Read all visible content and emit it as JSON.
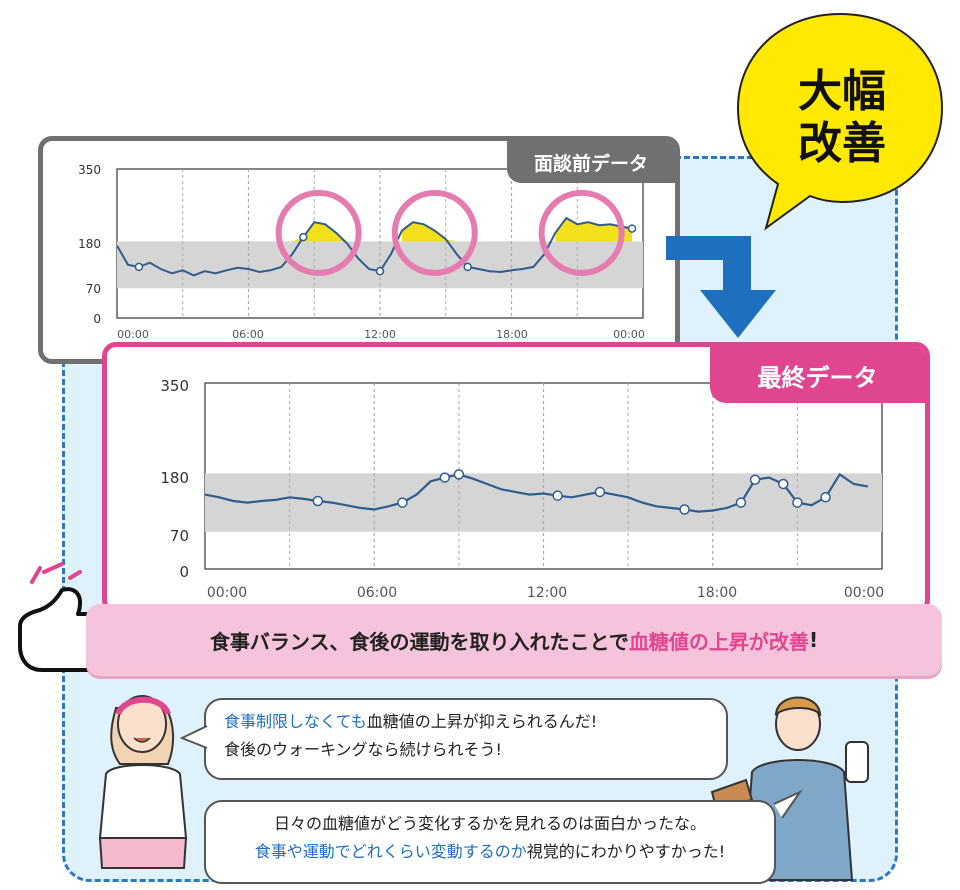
{
  "badge": {
    "line1": "大幅",
    "line2": "改善"
  },
  "before_chart": {
    "tab_label": "面談前データ",
    "y_ticks": [
      "350",
      "180",
      "70",
      "0"
    ],
    "x_ticks": [
      "00:00",
      "06:00",
      "12:00",
      "18:00",
      "00:00"
    ]
  },
  "after_chart": {
    "tab_label": "最終データ",
    "y_ticks": [
      "350",
      "180",
      "70",
      "0"
    ],
    "x_ticks": [
      "00:00",
      "06:00",
      "12:00",
      "18:00",
      "00:00"
    ]
  },
  "headline": {
    "text_plain": "食事バランス、食後の運動を取り入れたことで",
    "text_highlight": "血糖値の上昇が改善",
    "text_end": "!"
  },
  "bubble_1": {
    "line1_highlight": "食事制限しなくても",
    "line1_rest": "血糖値の上昇が抑えられるんだ!",
    "line2": "食後のウォーキングなら続けられそう!"
  },
  "bubble_2": {
    "line1": "日々の血糖値がどう変化するかを見れるのは面白かったな。",
    "line2_highlight": "食事や運動でどれくらい変動するのか",
    "line2_rest": "視覚的にわかりやすかった!"
  },
  "colors": {
    "accent_pink": "#e0468f",
    "accent_blue": "#2d78bf",
    "burst_yellow": "#ffe900"
  },
  "chart_data": [
    {
      "type": "line",
      "title": "面談前データ",
      "y_range": [
        0,
        350
      ],
      "target_band": [
        70,
        180
      ],
      "x": [
        0,
        0.5,
        1,
        1.5,
        2,
        2.5,
        3,
        3.5,
        4,
        4.5,
        5,
        5.5,
        6,
        6.5,
        7,
        7.5,
        8,
        8.5,
        9,
        9.5,
        10,
        10.5,
        11,
        11.5,
        12,
        12.5,
        13,
        13.5,
        14,
        14.5,
        15,
        15.5,
        16,
        16.5,
        17,
        17.5,
        18,
        18.5,
        19,
        19.5,
        20,
        20.5,
        21,
        21.5,
        22,
        22.5,
        23,
        23.5
      ],
      "values": [
        170,
        125,
        120,
        130,
        115,
        105,
        112,
        100,
        110,
        105,
        112,
        118,
        115,
        108,
        112,
        120,
        150,
        190,
        225,
        220,
        200,
        175,
        140,
        115,
        110,
        150,
        205,
        225,
        220,
        205,
        185,
        150,
        120,
        115,
        110,
        108,
        112,
        115,
        120,
        150,
        200,
        235,
        220,
        225,
        218,
        220,
        215,
        210
      ]
    },
    {
      "type": "line",
      "title": "最終データ",
      "y_range": [
        0,
        350
      ],
      "target_band": [
        70,
        180
      ],
      "x": [
        0,
        0.5,
        1,
        1.5,
        2,
        2.5,
        3,
        3.5,
        4,
        4.5,
        5,
        5.5,
        6,
        6.5,
        7,
        7.5,
        8,
        8.5,
        9,
        9.5,
        10,
        10.5,
        11,
        11.5,
        12,
        12.5,
        13,
        13.5,
        14,
        14.5,
        15,
        15.5,
        16,
        16.5,
        17,
        17.5,
        18,
        18.5,
        19,
        19.5,
        20,
        20.5,
        21,
        21.5,
        22,
        22.5,
        23,
        23.5
      ],
      "values": [
        140,
        135,
        128,
        125,
        128,
        130,
        135,
        132,
        128,
        125,
        120,
        115,
        112,
        118,
        125,
        140,
        165,
        172,
        178,
        170,
        160,
        150,
        145,
        140,
        142,
        138,
        135,
        140,
        145,
        140,
        135,
        125,
        118,
        115,
        112,
        108,
        110,
        115,
        125,
        168,
        172,
        160,
        125,
        120,
        135,
        178,
        160,
        155
      ]
    }
  ]
}
